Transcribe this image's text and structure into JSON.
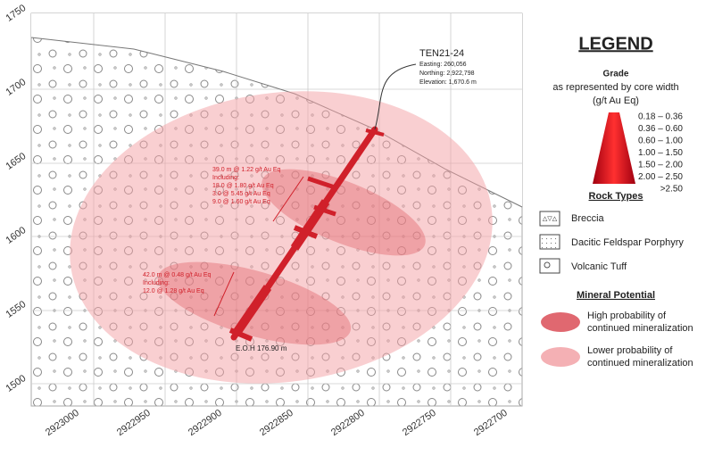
{
  "y_axis": {
    "ticks": [
      "1750",
      "1700",
      "1650",
      "1600",
      "1550",
      "1500"
    ]
  },
  "x_axis": {
    "ticks": [
      "2923000",
      "2922950",
      "2922900",
      "2922850",
      "2922800",
      "2922750",
      "2922700"
    ]
  },
  "drillhole": {
    "name": "TEN21-24",
    "details": [
      "Easting: 260,056",
      "Northing: 2,922,798",
      "Elevation: 1,670.6 m"
    ],
    "end_label": "E.O.H 176.90 m"
  },
  "intercepts": [
    {
      "lines": [
        "39.0 m @ 1.22 g/t Au Eq",
        "Including:",
        "18.0 @ 1.80 g/t Au Eq",
        "3.0 @ 5.45 g/t Au Eq",
        "9.0 @ 1.60 g/t Au Eq"
      ]
    },
    {
      "lines": [
        "42.0 m @ 0.48 g/t Au Eq",
        "Including:",
        "12.0 @ 1.28 g/t Au Eq"
      ]
    }
  ],
  "legend": {
    "title": "LEGEND",
    "grade_title": "Grade",
    "grade_subtitle": "as represented by core width",
    "grade_units": "(g/t Au Eq)",
    "grade_classes": [
      "0.18 – 0.36",
      "0.36 – 0.60",
      "0.60 – 1.00",
      "1.00 – 1.50",
      "1.50 – 2.00",
      "2.00 – 2.50",
      ">2.50"
    ],
    "rock_types_title": "Rock Types",
    "rock_types": [
      "Breccia",
      "Dacitic Feldspar Porphyry",
      "Volcanic Tuff"
    ],
    "mineral_potential_title": "Mineral Potential",
    "mineral_potential": [
      {
        "lines": [
          "High probability of",
          "continued mineralization"
        ]
      },
      {
        "lines": [
          "Lower probability of",
          "continued mineralization"
        ]
      }
    ]
  }
}
